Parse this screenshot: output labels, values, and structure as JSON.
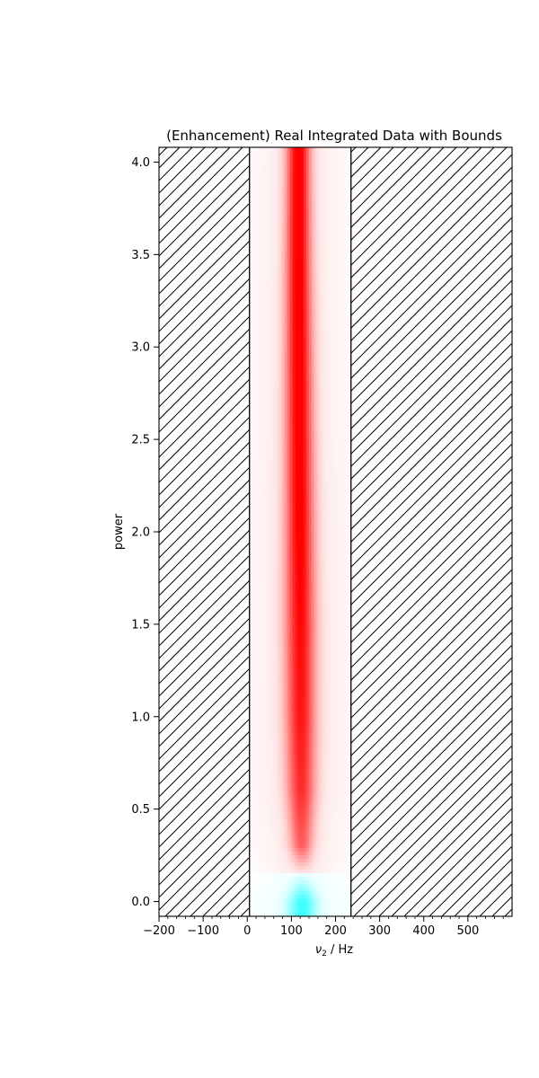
{
  "chart_data": {
    "type": "heatmap",
    "title": "(Enhancement) Real Integrated Data with Bounds",
    "xlabel": {
      "symbol": "ν",
      "subscript": "2",
      "unit": " / Hz"
    },
    "ylabel": "power",
    "xlim": [
      -200,
      600
    ],
    "ylim": [
      -0.08,
      4.08
    ],
    "xticks": [
      -200,
      -100,
      0,
      100,
      200,
      300,
      400,
      500
    ],
    "xtick_labels": [
      "−200",
      "−100",
      "0",
      "100",
      "200",
      "300",
      "400",
      "500"
    ],
    "yticks": [
      0.0,
      0.5,
      1.0,
      1.5,
      2.0,
      2.5,
      3.0,
      3.5,
      4.0
    ],
    "ytick_labels": [
      "0.0",
      "0.5",
      "1.0",
      "1.5",
      "2.0",
      "2.5",
      "3.0",
      "3.5",
      "4.0"
    ],
    "bounds": [
      5,
      235
    ],
    "hatched_regions": [
      [
        -200,
        5
      ],
      [
        235,
        600
      ]
    ],
    "colormap": {
      "positive": "#ff0000",
      "negative": "#00ffff",
      "zero": "#ffffff"
    },
    "peak": {
      "power": [
        0.0,
        0.15,
        0.3,
        0.6,
        1.0,
        1.5,
        2.0,
        2.5,
        3.0,
        3.5,
        4.0
      ],
      "center_hz": [
        125,
        125,
        123,
        122,
        121,
        120,
        119,
        118,
        117,
        116,
        116
      ],
      "width_hz": [
        22,
        14,
        18,
        22,
        23,
        23,
        22,
        21,
        20,
        19,
        18
      ],
      "intensity": [
        -0.7,
        0.0,
        0.55,
        0.75,
        0.85,
        0.9,
        0.95,
        0.97,
        1.0,
        1.0,
        1.0
      ]
    }
  }
}
